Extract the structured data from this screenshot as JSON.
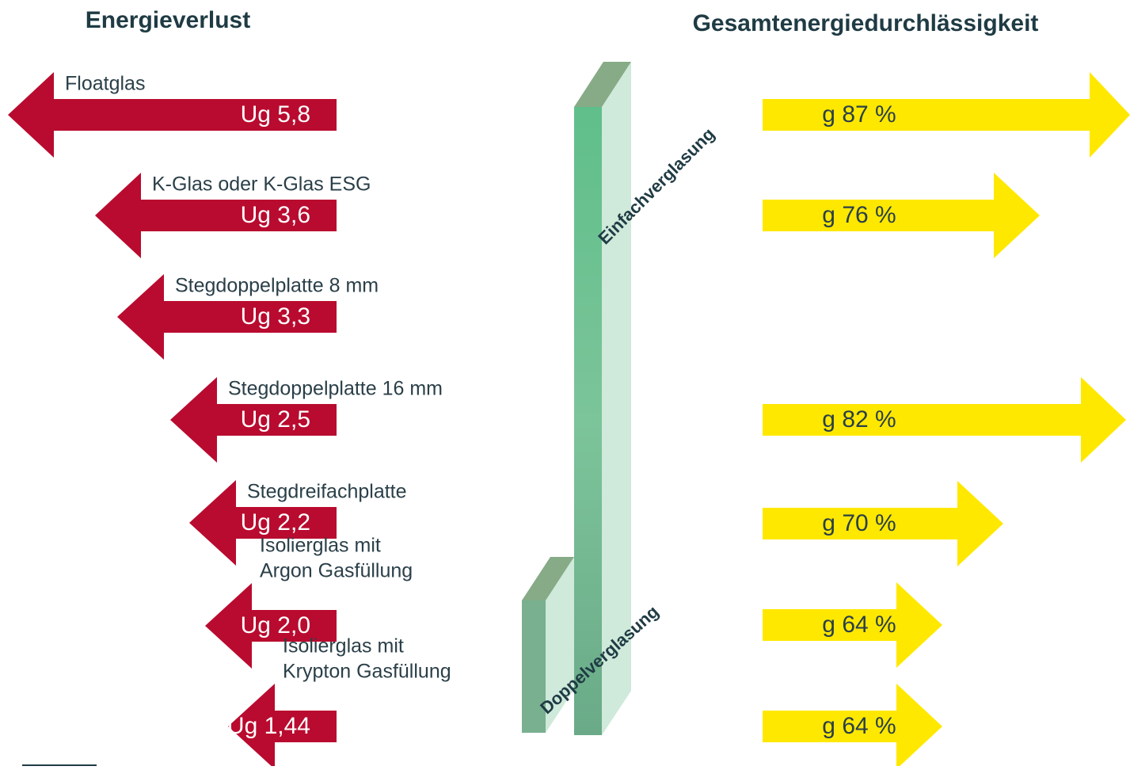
{
  "header": {
    "left_title": "Energieverlust",
    "right_title": "Gesamtenergiedurchlässigkeit"
  },
  "losses": [
    {
      "label": "Floatglas",
      "value": "Ug 5,8"
    },
    {
      "label": "K-Glas oder K-Glas ESG",
      "value": "Ug 3,6"
    },
    {
      "label": "Stegdoppelplatte 8 mm",
      "value": "Ug 3,3"
    },
    {
      "label": "Stegdoppelplatte 16 mm",
      "value": "Ug 2,5"
    },
    {
      "label": "Stegdreifachplatte",
      "value": "Ug 2,2"
    },
    {
      "label": [
        "Isolierglas mit",
        "Argon Gasfüllung"
      ],
      "value": "Ug 2,0"
    },
    {
      "label": [
        "Isolierglas mit",
        "Krypton Gasfüllung"
      ],
      "value": "Ug 1,44"
    }
  ],
  "transmission": [
    "g 87 %",
    "g 76 %",
    "g 82 %",
    "g 70 %",
    "g 64 %",
    "g 64 %"
  ],
  "glass": {
    "single": "Einfachverglasung",
    "double": "Doppelverglasung"
  }
}
